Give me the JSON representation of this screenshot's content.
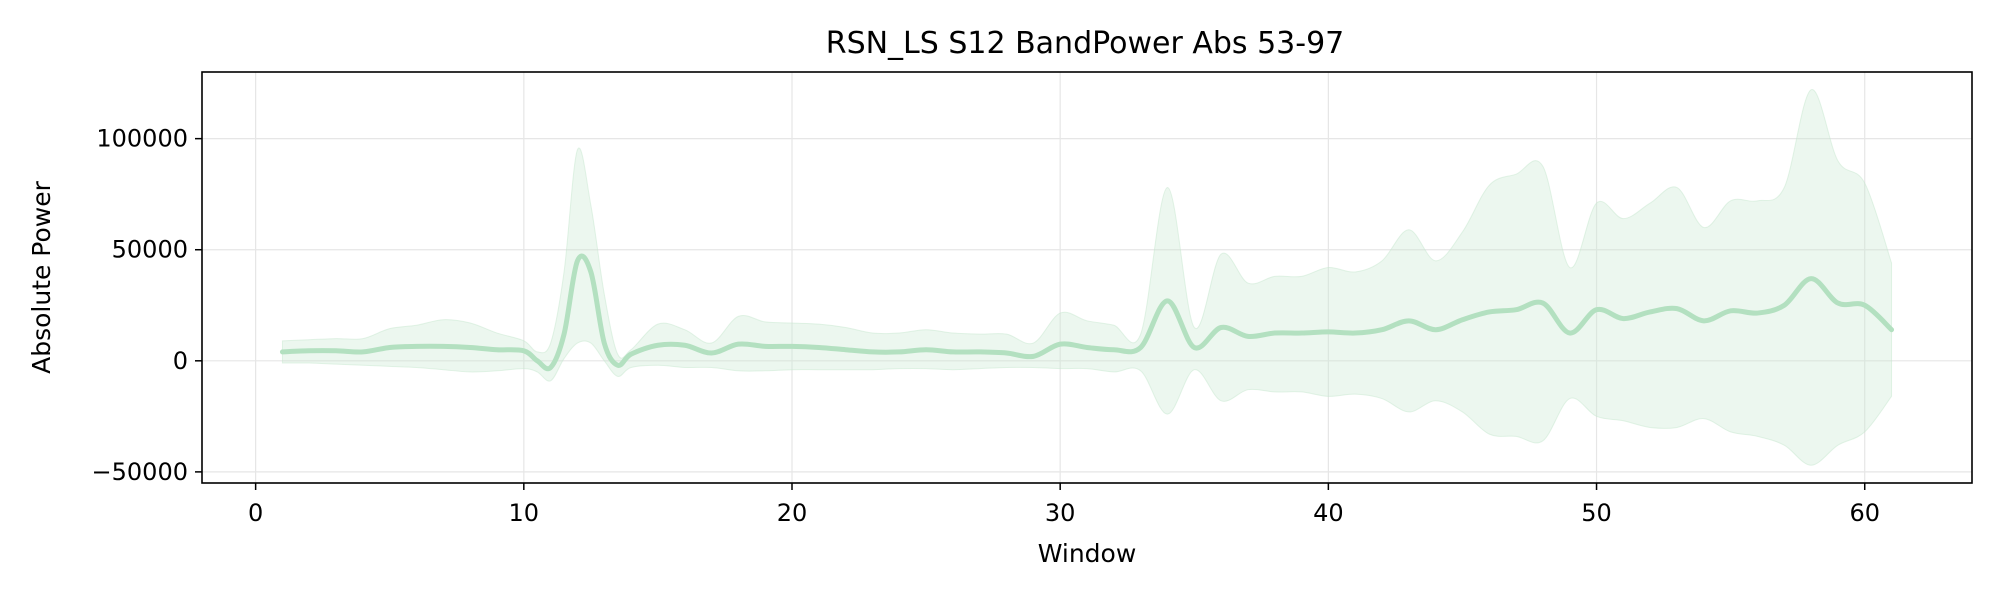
{
  "chart_data": {
    "type": "line",
    "title": "RSN_LS S12 BandPower Abs 53-97",
    "xlabel": "Window",
    "ylabel": "Absolute Power",
    "xlim": [
      -2,
      64
    ],
    "ylim": [
      -55000,
      130000
    ],
    "xticks": [
      0,
      10,
      20,
      30,
      40,
      50,
      60
    ],
    "yticks": [
      -50000,
      0,
      50000,
      100000
    ],
    "xtick_labels": [
      "0",
      "10",
      "20",
      "30",
      "40",
      "50",
      "60"
    ],
    "ytick_labels": [
      "−50000",
      "0",
      "50000",
      "100000"
    ],
    "grid": true,
    "legend": "none",
    "colors": {
      "line": "#b3e0c0",
      "band": "#c8e8d0"
    },
    "series": [
      {
        "x": [
          1,
          2,
          3,
          4,
          5,
          6,
          7,
          8,
          9,
          10,
          10.5,
          11,
          11.5,
          12,
          12.5,
          13,
          13.5,
          14,
          15,
          16,
          17,
          18,
          19,
          20,
          21,
          22,
          23,
          24,
          25,
          26,
          27,
          28,
          29,
          30,
          31,
          32,
          33,
          34,
          35,
          36,
          37,
          38,
          39,
          40,
          41,
          42,
          43,
          44,
          45,
          46,
          47,
          48,
          49,
          50,
          51,
          52,
          53,
          54,
          55,
          56,
          57,
          58,
          59,
          60,
          61
        ],
        "values": [
          4000,
          4500,
          4500,
          4000,
          6000,
          6500,
          6500,
          6000,
          5000,
          4500,
          0,
          -3000,
          12000,
          45000,
          40000,
          8000,
          -2000,
          3000,
          7000,
          7000,
          3500,
          7500,
          6500,
          6500,
          6000,
          5000,
          4000,
          4000,
          5000,
          4000,
          4000,
          3500,
          2000,
          7500,
          6000,
          5000,
          6000,
          27000,
          6000,
          15000,
          11000,
          12500,
          12500,
          13000,
          12500,
          14000,
          18000,
          14000,
          18500,
          22000,
          23000,
          26000,
          12500,
          23000,
          19000,
          22000,
          23500,
          18000,
          22500,
          21500,
          25000,
          37000,
          26000,
          25000,
          14000
        ],
        "upper": [
          9000,
          9500,
          10000,
          10000,
          14500,
          16000,
          18500,
          17000,
          12500,
          9000,
          4000,
          8000,
          40000,
          95000,
          70000,
          30000,
          3000,
          5000,
          16500,
          14000,
          8000,
          20000,
          17500,
          17000,
          16500,
          15000,
          12500,
          12500,
          14000,
          12500,
          12000,
          12000,
          8000,
          21500,
          18000,
          16000,
          12000,
          78000,
          15000,
          48000,
          35000,
          38000,
          38000,
          42000,
          40000,
          45000,
          59000,
          45000,
          58000,
          79000,
          84000,
          87500,
          42000,
          71000,
          64000,
          71000,
          78000,
          60000,
          72000,
          72000,
          78000,
          122000,
          90000,
          80000,
          44000
        ],
        "lower": [
          -1000,
          -1000,
          -1500,
          -2000,
          -2500,
          -3000,
          -4000,
          -5000,
          -4500,
          -3500,
          -5000,
          -9000,
          1000,
          8000,
          8000,
          0,
          -7000,
          -3000,
          -2000,
          -3000,
          -3000,
          -4500,
          -4500,
          -4000,
          -4000,
          -4000,
          -4000,
          -3500,
          -3500,
          -4000,
          -3500,
          -3000,
          -3000,
          -3500,
          -3500,
          -5000,
          -4500,
          -24000,
          -4000,
          -18000,
          -13000,
          -14000,
          -14000,
          -16000,
          -15000,
          -17000,
          -23000,
          -18000,
          -23000,
          -33000,
          -34000,
          -36000,
          -17000,
          -25000,
          -27000,
          -30000,
          -30000,
          -26000,
          -32000,
          -34000,
          -38000,
          -47000,
          -38000,
          -32000,
          -16000
        ]
      }
    ]
  }
}
